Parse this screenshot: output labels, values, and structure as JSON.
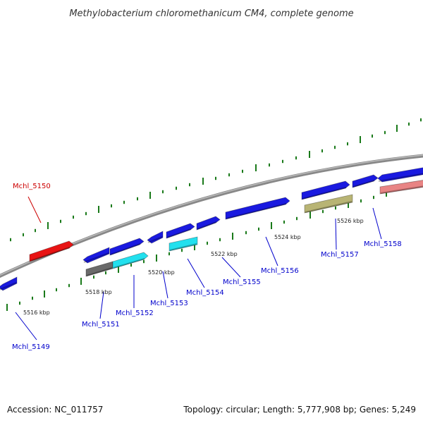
{
  "title": "Methylobacterium chloromethanicum CM4, complete genome",
  "footer": {
    "accession": "Accession: NC_011757",
    "summary": "Topology: circular; Length: 5,777,908 bp; Genes: 5,249"
  },
  "colors": {
    "forward_strand": "#1a1ae0",
    "reverse_blue": "#1a1ae0",
    "highlight": "#e81414",
    "gray": "#6a6a6a",
    "cyan": "#22e0ee",
    "olive": "#b8b474",
    "pink": "#e88484",
    "ticks": "#1a7a1a",
    "backbone": "#888888",
    "label_blue": "#0000cc",
    "label_red": "#cc0000"
  },
  "kbp_labels": [
    "5516 kbp",
    "5518 kbp",
    "5520 kbp",
    "5522 kbp",
    "5524 kbp",
    "5526 kbp"
  ],
  "gene_labels": [
    {
      "text": "Mchl_5149",
      "color": "blue"
    },
    {
      "text": "Mchl_5150",
      "color": "red"
    },
    {
      "text": "Mchl_5151",
      "color": "blue"
    },
    {
      "text": "Mchl_5152",
      "color": "blue"
    },
    {
      "text": "Mchl_5153",
      "color": "blue"
    },
    {
      "text": "Mchl_5154",
      "color": "blue"
    },
    {
      "text": "Mchl_5155",
      "color": "blue"
    },
    {
      "text": "Mchl_5156",
      "color": "blue"
    },
    {
      "text": "Mchl_5157",
      "color": "blue"
    },
    {
      "text": "Mchl_5158",
      "color": "blue"
    }
  ]
}
